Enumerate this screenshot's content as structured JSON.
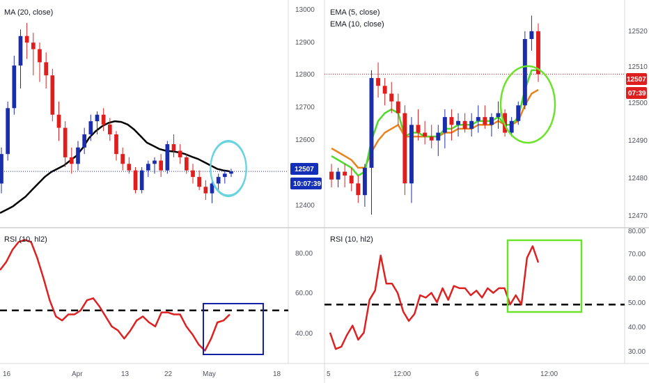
{
  "colors": {
    "up": "#1a2dad",
    "down": "#e01e1e",
    "sma": "#000000",
    "ema_fast": "#4cdb2a",
    "ema_slow": "#e8821f",
    "rsi": "#dd2020",
    "cyan_circle": "#6ad3e0",
    "green_mark": "#6be32b",
    "blue_box": "#1520a8",
    "last_price_left": "#1530b8",
    "last_price_right": "#e01e1e",
    "axis_text": "#50535e",
    "divider": "#d8d8d8"
  },
  "left": {
    "indicator_label": "MA (20, close)",
    "rsi_label": "RSI (10, hl2)",
    "price_ticks": [
      "13000",
      "12900",
      "12800",
      "12700",
      "12600",
      "12500",
      "12400"
    ],
    "rsi_ticks": [
      "80.00",
      "60.00",
      "40.00"
    ],
    "date_ticks": [
      "16",
      "Apr",
      "13",
      "22",
      "May",
      "18"
    ],
    "last_price": "12507",
    "countdown": "10:07:39"
  },
  "right": {
    "indicator_label_1": "EMA (5, close)",
    "indicator_label_2": "EMA (10, close)",
    "rsi_label": "RSI (10, hl2)",
    "price_ticks": [
      "12520",
      "12510",
      "12500",
      "12490",
      "12480",
      "12470"
    ],
    "rsi_ticks": [
      "80.00",
      "70.00",
      "60.00",
      "50.00",
      "40.00",
      "30.00"
    ],
    "date_ticks": [
      "5",
      "12:00",
      "6",
      "12:00"
    ],
    "last_price": "12507",
    "countdown": "07:39"
  },
  "chart_data": [
    {
      "type": "candlestick",
      "panel": "left-price",
      "x_labels": [
        "16",
        "Apr",
        "13",
        "22",
        "May",
        "18"
      ],
      "ylim": [
        12350,
        13030
      ],
      "candles_ohlc": [
        [
          12470,
          12580,
          12440,
          12560
        ],
        [
          12560,
          12720,
          12540,
          12700
        ],
        [
          12700,
          12860,
          12680,
          12830
        ],
        [
          12830,
          12940,
          12760,
          12920
        ],
        [
          12920,
          12960,
          12850,
          12900
        ],
        [
          12900,
          12930,
          12800,
          12880
        ],
        [
          12880,
          12900,
          12780,
          12840
        ],
        [
          12840,
          12870,
          12760,
          12800
        ],
        [
          12800,
          12820,
          12660,
          12680
        ],
        [
          12680,
          12720,
          12600,
          12640
        ],
        [
          12640,
          12660,
          12520,
          12550
        ],
        [
          12550,
          12580,
          12500,
          12530
        ],
        [
          12530,
          12600,
          12510,
          12580
        ],
        [
          12580,
          12640,
          12560,
          12620
        ],
        [
          12620,
          12680,
          12600,
          12660
        ],
        [
          12660,
          12690,
          12620,
          12680
        ],
        [
          12680,
          12700,
          12630,
          12650
        ],
        [
          12650,
          12670,
          12600,
          12620
        ],
        [
          12620,
          12630,
          12540,
          12560
        ],
        [
          12560,
          12580,
          12510,
          12530
        ],
        [
          12530,
          12550,
          12500,
          12510
        ],
        [
          12510,
          12520,
          12440,
          12450
        ],
        [
          12450,
          12520,
          12440,
          12510
        ],
        [
          12510,
          12540,
          12490,
          12530
        ],
        [
          12530,
          12550,
          12500,
          12540
        ],
        [
          12540,
          12560,
          12490,
          12510
        ],
        [
          12510,
          12600,
          12500,
          12590
        ],
        [
          12590,
          12620,
          12550,
          12570
        ],
        [
          12570,
          12590,
          12530,
          12550
        ],
        [
          12550,
          12560,
          12500,
          12510
        ],
        [
          12510,
          12530,
          12470,
          12490
        ],
        [
          12490,
          12510,
          12450,
          12460
        ],
        [
          12460,
          12480,
          12420,
          12440
        ],
        [
          12440,
          12480,
          12410,
          12470
        ],
        [
          12470,
          12500,
          12450,
          12490
        ],
        [
          12490,
          12510,
          12470,
          12500
        ],
        [
          12500,
          12515,
          12490,
          12507
        ]
      ],
      "sma20": [
        12380,
        12390,
        12400,
        12415,
        12430,
        12450,
        12470,
        12490,
        12505,
        12515,
        12525,
        12540,
        12555,
        12580,
        12610,
        12630,
        12645,
        12655,
        12660,
        12658,
        12650,
        12635,
        12615,
        12595,
        12585,
        12575,
        12570,
        12568,
        12565,
        12560,
        12552,
        12545,
        12535,
        12525,
        12515,
        12510,
        12507
      ],
      "last_price": 12507
    },
    {
      "type": "line",
      "panel": "left-rsi",
      "ylim": [
        25,
        90
      ],
      "values": [
        70,
        74,
        80,
        84,
        85,
        84,
        76,
        66,
        55,
        47,
        45,
        48,
        48,
        50,
        55,
        56,
        52,
        47,
        42,
        40,
        36,
        40,
        45,
        47,
        44,
        42,
        49,
        49,
        48,
        48,
        42,
        38,
        33,
        30,
        36,
        44,
        45,
        48
      ],
      "reference_level": 50
    },
    {
      "type": "candlestick",
      "panel": "right-price",
      "x_labels": [
        "5",
        "12:00",
        "6",
        "12:00"
      ],
      "ylim": [
        12468,
        12526
      ],
      "candles_ohlc": [
        [
          12482,
          12484,
          12478,
          12480
        ],
        [
          12480,
          12483,
          12478,
          12482
        ],
        [
          12482,
          12484,
          12478,
          12481
        ],
        [
          12481,
          12483,
          12477,
          12479
        ],
        [
          12479,
          12481,
          12474,
          12476
        ],
        [
          12476,
          12484,
          12473,
          12483
        ],
        [
          12483,
          12508,
          12471,
          12506
        ],
        [
          12506,
          12510,
          12501,
          12504
        ],
        [
          12504,
          12506,
          12499,
          12502
        ],
        [
          12502,
          12505,
          12497,
          12500
        ],
        [
          12500,
          12502,
          12494,
          12497
        ],
        [
          12497,
          12499,
          12476,
          12479
        ],
        [
          12479,
          12496,
          12474,
          12494
        ],
        [
          12494,
          12498,
          12490,
          12492
        ],
        [
          12492,
          12495,
          12489,
          12491
        ],
        [
          12491,
          12494,
          12488,
          12490
        ],
        [
          12490,
          12494,
          12486,
          12492
        ],
        [
          12492,
          12498,
          12488,
          12496
        ],
        [
          12496,
          12498,
          12490,
          12494
        ],
        [
          12494,
          12497,
          12491,
          12495
        ],
        [
          12495,
          12497,
          12492,
          12493
        ],
        [
          12493,
          12497,
          12491,
          12495
        ],
        [
          12495,
          12499,
          12492,
          12496
        ],
        [
          12496,
          12499,
          12493,
          12494
        ],
        [
          12494,
          12497,
          12491,
          12496
        ],
        [
          12496,
          12500,
          12493,
          12497
        ],
        [
          12497,
          12498,
          12491,
          12492
        ],
        [
          12492,
          12496,
          12491,
          12495
        ],
        [
          12495,
          12500,
          12494,
          12499
        ],
        [
          12499,
          12518,
          12498,
          12516
        ],
        [
          12516,
          12522,
          12513,
          12518
        ],
        [
          12518,
          12520,
          12505,
          12507
        ]
      ],
      "ema5": [
        12486,
        12485,
        12484,
        12483,
        12481,
        12482,
        12490,
        12495,
        12497,
        12498,
        12497,
        12491,
        12492,
        12492,
        12491,
        12491,
        12491,
        12493,
        12493,
        12494,
        12494,
        12494,
        12495,
        12495,
        12495,
        12496,
        12494,
        12494,
        12496,
        12503,
        12508,
        12508
      ],
      "ema10": [
        12488,
        12487,
        12486,
        12485,
        12483,
        12483,
        12487,
        12490,
        12492,
        12493,
        12494,
        12491,
        12491,
        12491,
        12491,
        12491,
        12491,
        12492,
        12492,
        12493,
        12493,
        12493,
        12494,
        12494,
        12494,
        12495,
        12494,
        12494,
        12495,
        12499,
        12502,
        12503
      ],
      "last_price": 12507
    },
    {
      "type": "line",
      "panel": "right-rsi",
      "ylim": [
        26,
        82
      ],
      "values": [
        38,
        31,
        32,
        37,
        41,
        35,
        38,
        52,
        56,
        71,
        59,
        59,
        55,
        47,
        43,
        46,
        54,
        53,
        55,
        51,
        57,
        52,
        58,
        57,
        57,
        54,
        56,
        53,
        57,
        55,
        57,
        57,
        50,
        54,
        50,
        70,
        75,
        68
      ],
      "reference_level": 50
    }
  ]
}
